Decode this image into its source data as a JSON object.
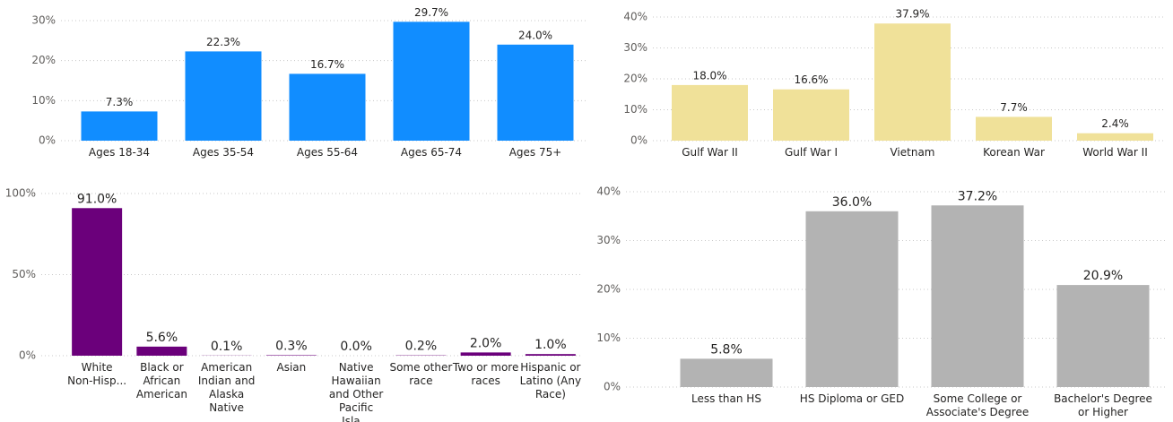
{
  "chart_data": [
    {
      "type": "bar",
      "categories": [
        "Ages 18-34",
        "Ages 35-54",
        "Ages 55-64",
        "Ages 65-74",
        "Ages 75+"
      ],
      "values": [
        7.3,
        22.3,
        16.7,
        29.7,
        24.0
      ],
      "value_labels": [
        "7.3%",
        "22.3%",
        "16.7%",
        "29.7%",
        "24.0%"
      ],
      "color": "#118dff",
      "ylim": [
        0,
        30
      ],
      "yticks": [
        {
          "value": 0,
          "label": "0%"
        },
        {
          "value": 10,
          "label": "10%"
        },
        {
          "value": 20,
          "label": "20%"
        },
        {
          "value": 30,
          "label": "30%"
        }
      ],
      "grid": true
    },
    {
      "type": "bar",
      "categories": [
        "Gulf War II",
        "Gulf War I",
        "Vietnam",
        "Korean War",
        "World War II"
      ],
      "values": [
        18.0,
        16.6,
        37.9,
        7.7,
        2.4
      ],
      "value_labels": [
        "18.0%",
        "16.6%",
        "37.9%",
        "7.7%",
        "2.4%"
      ],
      "color": "#f0e199",
      "ylim": [
        0,
        40
      ],
      "yticks": [
        {
          "value": 0,
          "label": "0%"
        },
        {
          "value": 10,
          "label": "10%"
        },
        {
          "value": 20,
          "label": "20%"
        },
        {
          "value": 30,
          "label": "30%"
        },
        {
          "value": 40,
          "label": "40%"
        }
      ],
      "grid": true
    },
    {
      "type": "bar",
      "categories": [
        "White Non-Hisp...",
        "Black or African American",
        "American Indian and Alaska Native",
        "Asian",
        "Native Hawaiian and Other Pacific Isla...",
        "Some other race",
        "Two or more races",
        "Hispanic or Latino (Any Race)"
      ],
      "values": [
        91.0,
        5.6,
        0.1,
        0.3,
        0.0,
        0.2,
        2.0,
        1.0
      ],
      "value_labels": [
        "91.0%",
        "5.6%",
        "0.1%",
        "0.3%",
        "0.0%",
        "0.2%",
        "2.0%",
        "1.0%"
      ],
      "color": "#6b007b",
      "ylim": [
        0,
        100
      ],
      "yticks": [
        {
          "value": 0,
          "label": "0%"
        },
        {
          "value": 50,
          "label": "50%"
        },
        {
          "value": 100,
          "label": "100%"
        }
      ],
      "grid": true
    },
    {
      "type": "bar",
      "categories": [
        "Less than HS",
        "HS Diploma or GED",
        "Some College or Associate's Degree",
        "Bachelor's Degree or Higher"
      ],
      "values": [
        5.8,
        36.0,
        37.2,
        20.9
      ],
      "value_labels": [
        "5.8%",
        "36.0%",
        "37.2%",
        "20.9%"
      ],
      "color": "#b3b3b3",
      "ylim": [
        0,
        40
      ],
      "yticks": [
        {
          "value": 0,
          "label": "0%"
        },
        {
          "value": 10,
          "label": "10%"
        },
        {
          "value": 20,
          "label": "20%"
        },
        {
          "value": 30,
          "label": "30%"
        },
        {
          "value": 40,
          "label": "40%"
        }
      ],
      "grid": true
    }
  ]
}
